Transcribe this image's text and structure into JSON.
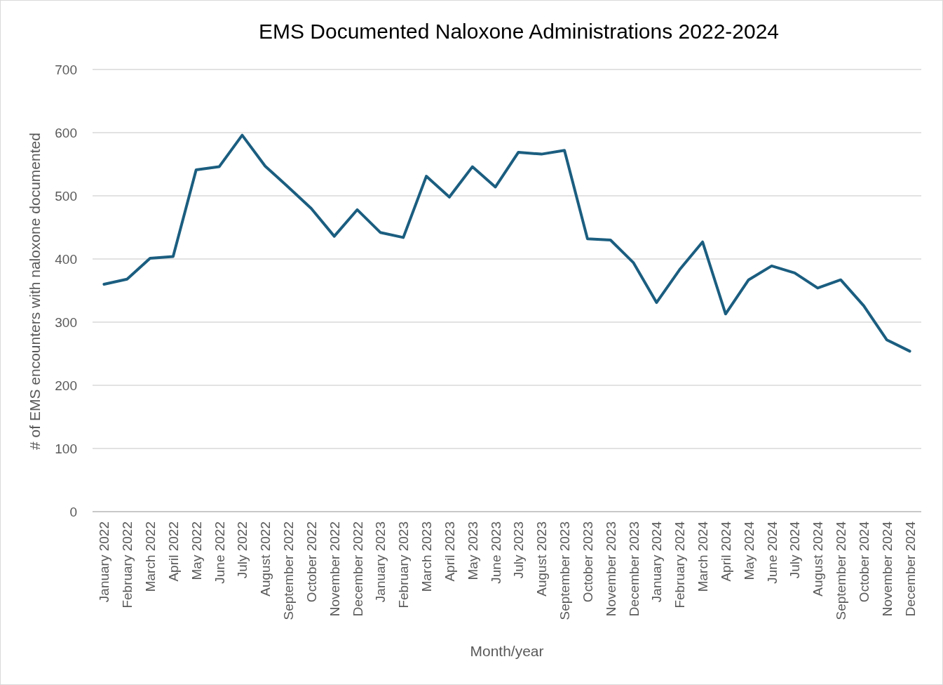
{
  "chart_data": {
    "type": "line",
    "title": "EMS Documented Naloxone Administrations 2022-2024",
    "xlabel": "Month/year",
    "ylabel": "# of EMS encounters with naloxone documented",
    "categories": [
      "January 2022",
      "February 2022",
      "March 2022",
      "April 2022",
      "May 2022",
      "June 2022",
      "July 2022",
      "August 2022",
      "September 2022",
      "October 2022",
      "November 2022",
      "December 2022",
      "January 2023",
      "February 2023",
      "March 2023",
      "April 2023",
      "May 2023",
      "June 2023",
      "July 2023",
      "August 2023",
      "September 2023",
      "October 2023",
      "November 2023",
      "December 2023",
      "January 2024",
      "February 2024",
      "March 2024",
      "April 2024",
      "May 2024",
      "June 2024",
      "July 2024",
      "August 2024",
      "September 2024",
      "October 2024",
      "November 2024",
      "December 2024"
    ],
    "series": [
      {
        "color": "#1b5e80",
        "values": [
          360,
          368,
          401,
          404,
          541,
          546,
          596,
          547,
          514,
          480,
          436,
          478,
          442,
          434,
          531,
          498,
          546,
          514,
          569,
          566,
          572,
          432,
          430,
          394,
          331,
          383,
          427,
          313,
          367,
          389,
          378,
          354,
          367,
          326,
          272,
          254
        ]
      }
    ],
    "ylim": [
      0,
      700
    ],
    "yticks": [
      0,
      100,
      200,
      300,
      400,
      500,
      600,
      700
    ],
    "grid": "y",
    "marker": "none",
    "line_style": "solid"
  }
}
